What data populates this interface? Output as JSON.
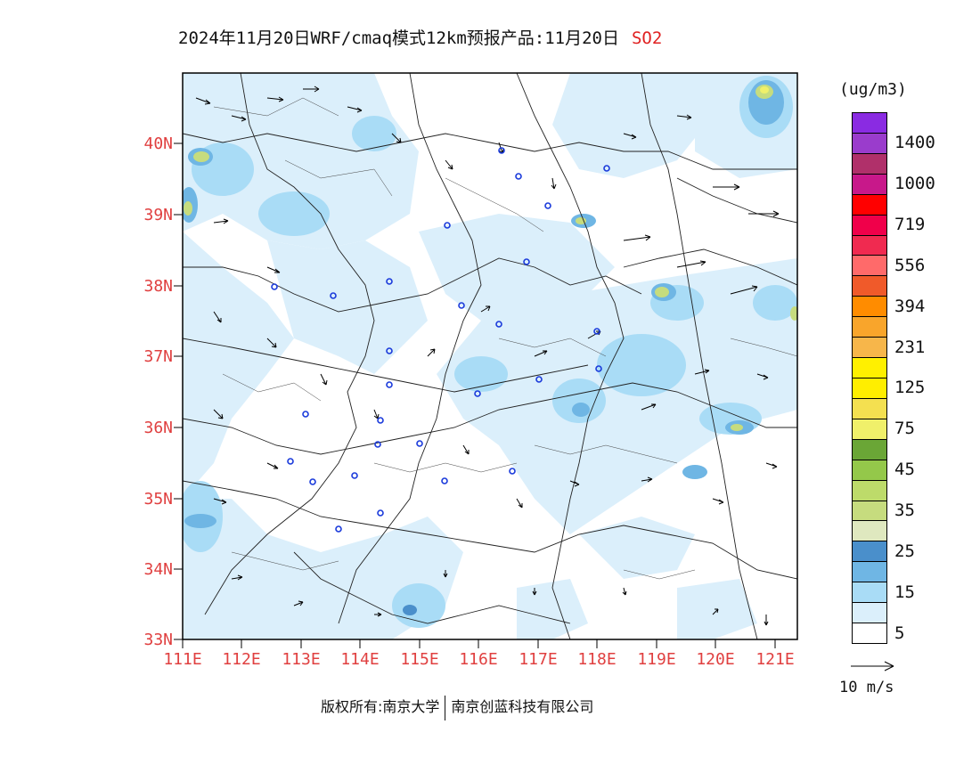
{
  "title": {
    "text": "2024年11月20日WRF/cmaq模式12km预报产品:11月20日",
    "pollutant": "SO2",
    "pollutant_color": "#e02020"
  },
  "map": {
    "lat_labels": [
      "40N",
      "39N",
      "38N",
      "37N",
      "36N",
      "35N",
      "34N",
      "33N"
    ],
    "lon_labels": [
      "111E",
      "112E",
      "113E",
      "114E",
      "115E",
      "116E",
      "117E",
      "118E",
      "119E",
      "120E",
      "121E"
    ],
    "label_color": "#e04040",
    "lon_range": [
      111,
      121.4
    ],
    "lat_range": [
      33,
      41
    ]
  },
  "legend": {
    "units": "(ug/m3)",
    "levels": [
      {
        "color": "#ffffff",
        "label": "5"
      },
      {
        "color": "#dbeffb",
        "label": ""
      },
      {
        "color": "#a9dcf6",
        "label": "15"
      },
      {
        "color": "#6fb6e4",
        "label": ""
      },
      {
        "color": "#4a8fcb",
        "label": "25"
      },
      {
        "color": "#dfe8bf",
        "label": ""
      },
      {
        "color": "#c6dc7e",
        "label": "35"
      },
      {
        "color": "#bddb6a",
        "label": ""
      },
      {
        "color": "#94c84a",
        "label": "45"
      },
      {
        "color": "#6aa636",
        "label": ""
      },
      {
        "color": "#f0f06a",
        "label": "75"
      },
      {
        "color": "#f4e050",
        "label": ""
      },
      {
        "color": "#ffee00",
        "label": "125"
      },
      {
        "color": "#fff000",
        "label": ""
      },
      {
        "color": "#f7b64a",
        "label": "231"
      },
      {
        "color": "#f9a52b",
        "label": ""
      },
      {
        "color": "#ff8c00",
        "label": "394"
      },
      {
        "color": "#f05a2a",
        "label": ""
      },
      {
        "color": "#ff6a6a",
        "label": "556"
      },
      {
        "color": "#f02a50",
        "label": ""
      },
      {
        "color": "#f0004a",
        "label": "719"
      },
      {
        "color": "#ff0000",
        "label": ""
      },
      {
        "color": "#c8188a",
        "label": "1000"
      },
      {
        "color": "#b0306a",
        "label": ""
      },
      {
        "color": "#9a3ccc",
        "label": "1400"
      },
      {
        "color": "#8a2be2",
        "label": ""
      }
    ]
  },
  "wind_reference": {
    "label": "10 m/s"
  },
  "footer": {
    "copyright": "版权所有:南京大学",
    "company": "南京创蓝科技有限公司"
  }
}
